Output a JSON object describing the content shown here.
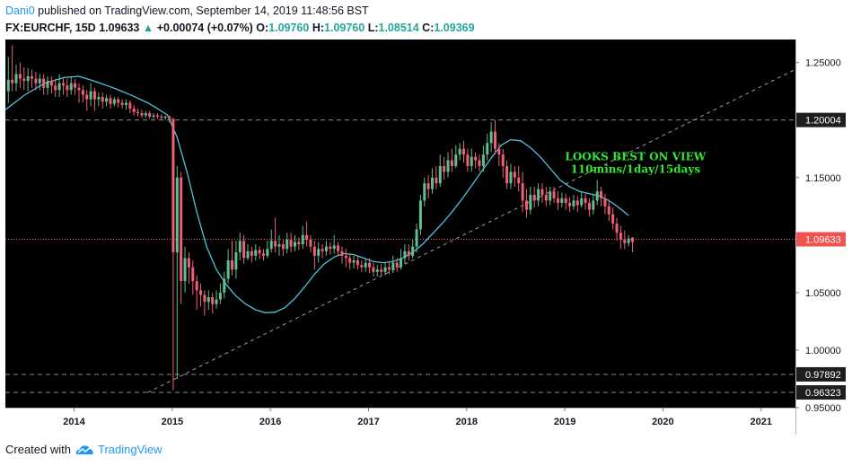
{
  "header": {
    "user": "Dani0",
    "published_text": "published on TradingView.com, September 14, 2019 11:48:56 BST",
    "symbol": "FX:EURCHF, 15D",
    "last": "1.09633",
    "arrow": "▲",
    "change": "+0.00074 (+0.07%)",
    "o_label": "O:",
    "o_value": "1.09760",
    "h_label": "H:",
    "h_value": "1.09760",
    "l_label": "L:",
    "l_value": "1.08514",
    "c_label": "C:",
    "c_value": "1.09369"
  },
  "footer": {
    "created_with": "Created with",
    "brand": "TradingView",
    "logo_icon": "tradingview-cloud-icon"
  },
  "colors": {
    "background": "#000000",
    "up": "#5fbf90",
    "down": "#ef6076",
    "ma": "#4ec3dc",
    "annotation": "#33e633",
    "price_line": "#ef5350",
    "trendline": "#9a9a9a"
  },
  "chart_data": {
    "type": "candlestick",
    "x_ticks": [
      "2014",
      "2015",
      "2016",
      "2017",
      "2018",
      "2019",
      "2020",
      "2021"
    ],
    "y_ticks": [
      "1.25000",
      "1.20004",
      "1.15000",
      "1.09633",
      "1.05000",
      "1.00000",
      "0.97892",
      "0.96323",
      "0.95000"
    ],
    "ylim": [
      0.95,
      1.27
    ],
    "xlim": [
      2013.3,
      2021.35
    ],
    "price_labels": [
      {
        "value": 1.20004,
        "text": "1.20004",
        "style": "level"
      },
      {
        "value": 1.09633,
        "text": "1.09633",
        "style": "last"
      },
      {
        "value": 0.97892,
        "text": "0.97892",
        "style": "level"
      },
      {
        "value": 0.96323,
        "text": "0.96323",
        "style": "level"
      }
    ],
    "horizontal_levels": [
      1.20004,
      0.97892,
      0.96323
    ],
    "last_price": 1.09633,
    "trendline": {
      "start": [
        2014.75,
        0.9632
      ],
      "end": [
        2021.35,
        1.244
      ]
    },
    "annotation": {
      "lines": [
        "LOOKS BEST ON VIEW",
        "110mins/1day/15days"
      ],
      "x": 2019.72,
      "y": 1.165
    },
    "ma": [
      [
        2013.3,
        1.209
      ],
      [
        2013.5,
        1.222
      ],
      [
        2013.7,
        1.232
      ],
      [
        2013.9,
        1.237
      ],
      [
        2014.05,
        1.238
      ],
      [
        2014.2,
        1.234
      ],
      [
        2014.4,
        1.228
      ],
      [
        2014.6,
        1.221
      ],
      [
        2014.75,
        1.215
      ],
      [
        2014.85,
        1.21
      ],
      [
        2014.95,
        1.2045
      ],
      [
        2015.05,
        1.185
      ],
      [
        2015.15,
        1.155
      ],
      [
        2015.25,
        1.12
      ],
      [
        2015.35,
        1.09
      ],
      [
        2015.45,
        1.07
      ],
      [
        2015.55,
        1.057
      ],
      [
        2015.65,
        1.047
      ],
      [
        2015.75,
        1.04
      ],
      [
        2015.85,
        1.035
      ],
      [
        2015.95,
        1.0325
      ],
      [
        2016.05,
        1.033
      ],
      [
        2016.15,
        1.037
      ],
      [
        2016.25,
        1.045
      ],
      [
        2016.35,
        1.055
      ],
      [
        2016.45,
        1.066
      ],
      [
        2016.55,
        1.075
      ],
      [
        2016.65,
        1.081
      ],
      [
        2016.75,
        1.084
      ],
      [
        2016.85,
        1.083
      ],
      [
        2016.95,
        1.08
      ],
      [
        2017.05,
        1.077
      ],
      [
        2017.15,
        1.076
      ],
      [
        2017.25,
        1.077
      ],
      [
        2017.35,
        1.08
      ],
      [
        2017.45,
        1.085
      ],
      [
        2017.55,
        1.092
      ],
      [
        2017.65,
        1.101
      ],
      [
        2017.75,
        1.11
      ],
      [
        2017.85,
        1.12
      ],
      [
        2017.95,
        1.131
      ],
      [
        2018.05,
        1.143
      ],
      [
        2018.15,
        1.155
      ],
      [
        2018.25,
        1.167
      ],
      [
        2018.35,
        1.178
      ],
      [
        2018.45,
        1.183
      ],
      [
        2018.55,
        1.182
      ],
      [
        2018.65,
        1.176
      ],
      [
        2018.75,
        1.168
      ],
      [
        2018.85,
        1.158
      ],
      [
        2018.95,
        1.148
      ],
      [
        2019.05,
        1.142
      ],
      [
        2019.15,
        1.138
      ],
      [
        2019.25,
        1.136
      ],
      [
        2019.35,
        1.134
      ],
      [
        2019.45,
        1.13
      ],
      [
        2019.55,
        1.124
      ],
      [
        2019.65,
        1.117
      ]
    ],
    "candles": [
      [
        2013.33,
        1.225,
        1.235,
        1.255,
        1.215
      ],
      [
        2013.37,
        1.235,
        1.232,
        1.265,
        1.225
      ],
      [
        2013.41,
        1.232,
        1.24,
        1.248,
        1.225
      ],
      [
        2013.45,
        1.24,
        1.236,
        1.25,
        1.228
      ],
      [
        2013.49,
        1.236,
        1.234,
        1.246,
        1.226
      ],
      [
        2013.53,
        1.234,
        1.238,
        1.245,
        1.225
      ],
      [
        2013.57,
        1.238,
        1.236,
        1.244,
        1.228
      ],
      [
        2013.61,
        1.236,
        1.232,
        1.242,
        1.226
      ],
      [
        2013.65,
        1.232,
        1.236,
        1.24,
        1.226
      ],
      [
        2013.69,
        1.236,
        1.228,
        1.24,
        1.222
      ],
      [
        2013.73,
        1.228,
        1.234,
        1.238,
        1.222
      ],
      [
        2013.77,
        1.234,
        1.23,
        1.238,
        1.223
      ],
      [
        2013.81,
        1.23,
        1.226,
        1.236,
        1.22
      ],
      [
        2013.85,
        1.226,
        1.232,
        1.24,
        1.22
      ],
      [
        2013.89,
        1.232,
        1.23,
        1.236,
        1.222
      ],
      [
        2013.93,
        1.23,
        1.226,
        1.236,
        1.22
      ],
      [
        2013.97,
        1.226,
        1.232,
        1.238,
        1.222
      ],
      [
        2014.01,
        1.232,
        1.228,
        1.236,
        1.222
      ],
      [
        2014.05,
        1.228,
        1.226,
        1.232,
        1.215
      ],
      [
        2014.09,
        1.226,
        1.222,
        1.23,
        1.215
      ],
      [
        2014.13,
        1.222,
        1.218,
        1.226,
        1.208
      ],
      [
        2014.17,
        1.218,
        1.225,
        1.232,
        1.212
      ],
      [
        2014.21,
        1.225,
        1.218,
        1.228,
        1.208
      ],
      [
        2014.25,
        1.218,
        1.22,
        1.224,
        1.212
      ],
      [
        2014.29,
        1.22,
        1.216,
        1.224,
        1.21
      ],
      [
        2014.33,
        1.216,
        1.219,
        1.222,
        1.212
      ],
      [
        2014.37,
        1.219,
        1.214,
        1.222,
        1.21
      ],
      [
        2014.41,
        1.214,
        1.218,
        1.22,
        1.212
      ],
      [
        2014.45,
        1.218,
        1.215,
        1.22,
        1.211
      ],
      [
        2014.49,
        1.215,
        1.213,
        1.218,
        1.21
      ],
      [
        2014.53,
        1.213,
        1.215,
        1.218,
        1.209
      ],
      [
        2014.57,
        1.215,
        1.21,
        1.217,
        1.206
      ],
      [
        2014.61,
        1.21,
        1.207,
        1.213,
        1.204
      ],
      [
        2014.65,
        1.207,
        1.206,
        1.21,
        1.203
      ],
      [
        2014.69,
        1.206,
        1.204,
        1.209,
        1.202
      ],
      [
        2014.73,
        1.204,
        1.206,
        1.208,
        1.202
      ],
      [
        2014.77,
        1.206,
        1.203,
        1.208,
        1.201
      ],
      [
        2014.81,
        1.203,
        1.204,
        1.206,
        1.201
      ],
      [
        2014.85,
        1.204,
        1.203,
        1.206,
        1.201
      ],
      [
        2014.89,
        1.203,
        1.202,
        1.205,
        1.2
      ],
      [
        2014.93,
        1.202,
        1.203,
        1.204,
        1.2
      ],
      [
        2014.97,
        1.203,
        1.201,
        1.204,
        1.198
      ],
      [
        2015.01,
        1.201,
        1.085,
        1.202,
        0.965
      ],
      [
        2015.05,
        1.085,
        1.15,
        1.16,
        0.975
      ],
      [
        2015.09,
        1.15,
        1.06,
        1.155,
        1.04
      ],
      [
        2015.13,
        1.06,
        1.08,
        1.09,
        1.05
      ],
      [
        2015.17,
        1.08,
        1.072,
        1.085,
        1.058
      ],
      [
        2015.21,
        1.072,
        1.06,
        1.078,
        1.048
      ],
      [
        2015.25,
        1.06,
        1.052,
        1.065,
        1.035
      ],
      [
        2015.29,
        1.052,
        1.048,
        1.058,
        1.038
      ],
      [
        2015.33,
        1.048,
        1.042,
        1.052,
        1.03
      ],
      [
        2015.37,
        1.042,
        1.046,
        1.052,
        1.035
      ],
      [
        2015.41,
        1.046,
        1.04,
        1.05,
        1.032
      ],
      [
        2015.45,
        1.04,
        1.044,
        1.052,
        1.036
      ],
      [
        2015.49,
        1.044,
        1.05,
        1.058,
        1.04
      ],
      [
        2015.53,
        1.05,
        1.062,
        1.068,
        1.045
      ],
      [
        2015.57,
        1.062,
        1.078,
        1.088,
        1.058
      ],
      [
        2015.61,
        1.078,
        1.07,
        1.095,
        1.065
      ],
      [
        2015.65,
        1.07,
        1.085,
        1.095,
        1.062
      ],
      [
        2015.69,
        1.085,
        1.095,
        1.102,
        1.078
      ],
      [
        2015.73,
        1.095,
        1.08,
        1.1,
        1.075
      ],
      [
        2015.77,
        1.08,
        1.086,
        1.092,
        1.078
      ],
      [
        2015.81,
        1.086,
        1.082,
        1.09,
        1.076
      ],
      [
        2015.85,
        1.082,
        1.087,
        1.092,
        1.078
      ],
      [
        2015.89,
        1.087,
        1.084,
        1.09,
        1.079
      ],
      [
        2015.93,
        1.084,
        1.082,
        1.088,
        1.078
      ],
      [
        2015.97,
        1.082,
        1.088,
        1.095,
        1.08
      ],
      [
        2016.01,
        1.088,
        1.095,
        1.105,
        1.085
      ],
      [
        2016.05,
        1.095,
        1.09,
        1.115,
        1.085
      ],
      [
        2016.09,
        1.09,
        1.092,
        1.1,
        1.082
      ],
      [
        2016.13,
        1.092,
        1.088,
        1.096,
        1.082
      ],
      [
        2016.17,
        1.088,
        1.096,
        1.102,
        1.084
      ],
      [
        2016.21,
        1.096,
        1.09,
        1.102,
        1.085
      ],
      [
        2016.25,
        1.09,
        1.094,
        1.1,
        1.086
      ],
      [
        2016.29,
        1.094,
        1.092,
        1.098,
        1.087
      ],
      [
        2016.33,
        1.092,
        1.1,
        1.108,
        1.088
      ],
      [
        2016.37,
        1.1,
        1.096,
        1.112,
        1.09
      ],
      [
        2016.41,
        1.096,
        1.09,
        1.1,
        1.085
      ],
      [
        2016.45,
        1.09,
        1.082,
        1.095,
        1.07
      ],
      [
        2016.49,
        1.082,
        1.088,
        1.094,
        1.076
      ],
      [
        2016.53,
        1.088,
        1.086,
        1.092,
        1.08
      ],
      [
        2016.57,
        1.086,
        1.09,
        1.095,
        1.082
      ],
      [
        2016.61,
        1.09,
        1.088,
        1.094,
        1.083
      ],
      [
        2016.65,
        1.088,
        1.091,
        1.1,
        1.084
      ],
      [
        2016.69,
        1.091,
        1.086,
        1.094,
        1.082
      ],
      [
        2016.73,
        1.086,
        1.082,
        1.09,
        1.075
      ],
      [
        2016.77,
        1.082,
        1.08,
        1.088,
        1.072
      ],
      [
        2016.81,
        1.08,
        1.076,
        1.084,
        1.07
      ],
      [
        2016.85,
        1.076,
        1.078,
        1.082,
        1.071
      ],
      [
        2016.89,
        1.078,
        1.074,
        1.082,
        1.07
      ],
      [
        2016.93,
        1.074,
        1.072,
        1.078,
        1.068
      ],
      [
        2016.97,
        1.072,
        1.076,
        1.08,
        1.068
      ],
      [
        2017.01,
        1.076,
        1.072,
        1.08,
        1.067
      ],
      [
        2017.05,
        1.072,
        1.068,
        1.076,
        1.064
      ],
      [
        2017.09,
        1.068,
        1.07,
        1.074,
        1.064
      ],
      [
        2017.13,
        1.07,
        1.068,
        1.075,
        1.065
      ],
      [
        2017.17,
        1.068,
        1.072,
        1.076,
        1.065
      ],
      [
        2017.21,
        1.072,
        1.07,
        1.076,
        1.066
      ],
      [
        2017.25,
        1.07,
        1.076,
        1.082,
        1.067
      ],
      [
        2017.29,
        1.076,
        1.072,
        1.08,
        1.068
      ],
      [
        2017.33,
        1.072,
        1.08,
        1.088,
        1.07
      ],
      [
        2017.37,
        1.08,
        1.086,
        1.092,
        1.075
      ],
      [
        2017.41,
        1.086,
        1.082,
        1.092,
        1.078
      ],
      [
        2017.45,
        1.082,
        1.09,
        1.096,
        1.08
      ],
      [
        2017.49,
        1.09,
        1.105,
        1.11,
        1.085
      ],
      [
        2017.53,
        1.105,
        1.13,
        1.135,
        1.1
      ],
      [
        2017.57,
        1.13,
        1.145,
        1.15,
        1.125
      ],
      [
        2017.61,
        1.145,
        1.14,
        1.152,
        1.132
      ],
      [
        2017.65,
        1.14,
        1.15,
        1.158,
        1.136
      ],
      [
        2017.69,
        1.15,
        1.145,
        1.16,
        1.14
      ],
      [
        2017.73,
        1.145,
        1.16,
        1.17,
        1.142
      ],
      [
        2017.77,
        1.16,
        1.155,
        1.168,
        1.148
      ],
      [
        2017.81,
        1.155,
        1.165,
        1.172,
        1.15
      ],
      [
        2017.85,
        1.165,
        1.16,
        1.175,
        1.155
      ],
      [
        2017.89,
        1.16,
        1.17,
        1.178,
        1.158
      ],
      [
        2017.93,
        1.17,
        1.175,
        1.18,
        1.165
      ],
      [
        2017.97,
        1.175,
        1.17,
        1.182,
        1.163
      ],
      [
        2018.01,
        1.17,
        1.16,
        1.175,
        1.155
      ],
      [
        2018.05,
        1.16,
        1.168,
        1.175,
        1.155
      ],
      [
        2018.09,
        1.168,
        1.165,
        1.172,
        1.158
      ],
      [
        2018.13,
        1.165,
        1.16,
        1.17,
        1.155
      ],
      [
        2018.17,
        1.16,
        1.17,
        1.178,
        1.155
      ],
      [
        2018.21,
        1.17,
        1.18,
        1.188,
        1.165
      ],
      [
        2018.25,
        1.18,
        1.19,
        1.198,
        1.172
      ],
      [
        2018.29,
        1.19,
        1.175,
        1.2,
        1.17
      ],
      [
        2018.33,
        1.175,
        1.17,
        1.18,
        1.16
      ],
      [
        2018.37,
        1.17,
        1.16,
        1.175,
        1.15
      ],
      [
        2018.41,
        1.16,
        1.145,
        1.165,
        1.14
      ],
      [
        2018.45,
        1.145,
        1.155,
        1.162,
        1.14
      ],
      [
        2018.49,
        1.155,
        1.15,
        1.16,
        1.142
      ],
      [
        2018.53,
        1.15,
        1.145,
        1.16,
        1.138
      ],
      [
        2018.57,
        1.145,
        1.13,
        1.155,
        1.12
      ],
      [
        2018.61,
        1.13,
        1.122,
        1.14,
        1.115
      ],
      [
        2018.65,
        1.122,
        1.135,
        1.142,
        1.118
      ],
      [
        2018.69,
        1.135,
        1.13,
        1.142,
        1.124
      ],
      [
        2018.73,
        1.13,
        1.14,
        1.145,
        1.125
      ],
      [
        2018.77,
        1.14,
        1.135,
        1.145,
        1.128
      ],
      [
        2018.81,
        1.135,
        1.13,
        1.142,
        1.125
      ],
      [
        2018.85,
        1.13,
        1.138,
        1.142,
        1.126
      ],
      [
        2018.89,
        1.138,
        1.132,
        1.142,
        1.128
      ],
      [
        2018.93,
        1.132,
        1.128,
        1.138,
        1.122
      ],
      [
        2018.97,
        1.128,
        1.132,
        1.137,
        1.124
      ],
      [
        2019.01,
        1.132,
        1.128,
        1.136,
        1.122
      ],
      [
        2019.05,
        1.128,
        1.125,
        1.133,
        1.12
      ],
      [
        2019.09,
        1.125,
        1.13,
        1.135,
        1.122
      ],
      [
        2019.13,
        1.13,
        1.126,
        1.134,
        1.12
      ],
      [
        2019.17,
        1.126,
        1.132,
        1.138,
        1.124
      ],
      [
        2019.21,
        1.132,
        1.128,
        1.136,
        1.122
      ],
      [
        2019.25,
        1.128,
        1.122,
        1.132,
        1.116
      ],
      [
        2019.29,
        1.122,
        1.13,
        1.136,
        1.118
      ],
      [
        2019.33,
        1.13,
        1.138,
        1.148,
        1.126
      ],
      [
        2019.37,
        1.138,
        1.132,
        1.142,
        1.125
      ],
      [
        2019.41,
        1.132,
        1.125,
        1.136,
        1.118
      ],
      [
        2019.45,
        1.125,
        1.118,
        1.13,
        1.112
      ],
      [
        2019.49,
        1.118,
        1.11,
        1.124,
        1.105
      ],
      [
        2019.53,
        1.11,
        1.102,
        1.115,
        1.095
      ],
      [
        2019.57,
        1.102,
        1.096,
        1.108,
        1.088
      ],
      [
        2019.61,
        1.096,
        1.093,
        1.104,
        1.088
      ],
      [
        2019.65,
        1.093,
        1.097,
        1.1,
        1.09
      ],
      [
        2019.69,
        1.098,
        1.094,
        1.098,
        1.085
      ]
    ]
  }
}
